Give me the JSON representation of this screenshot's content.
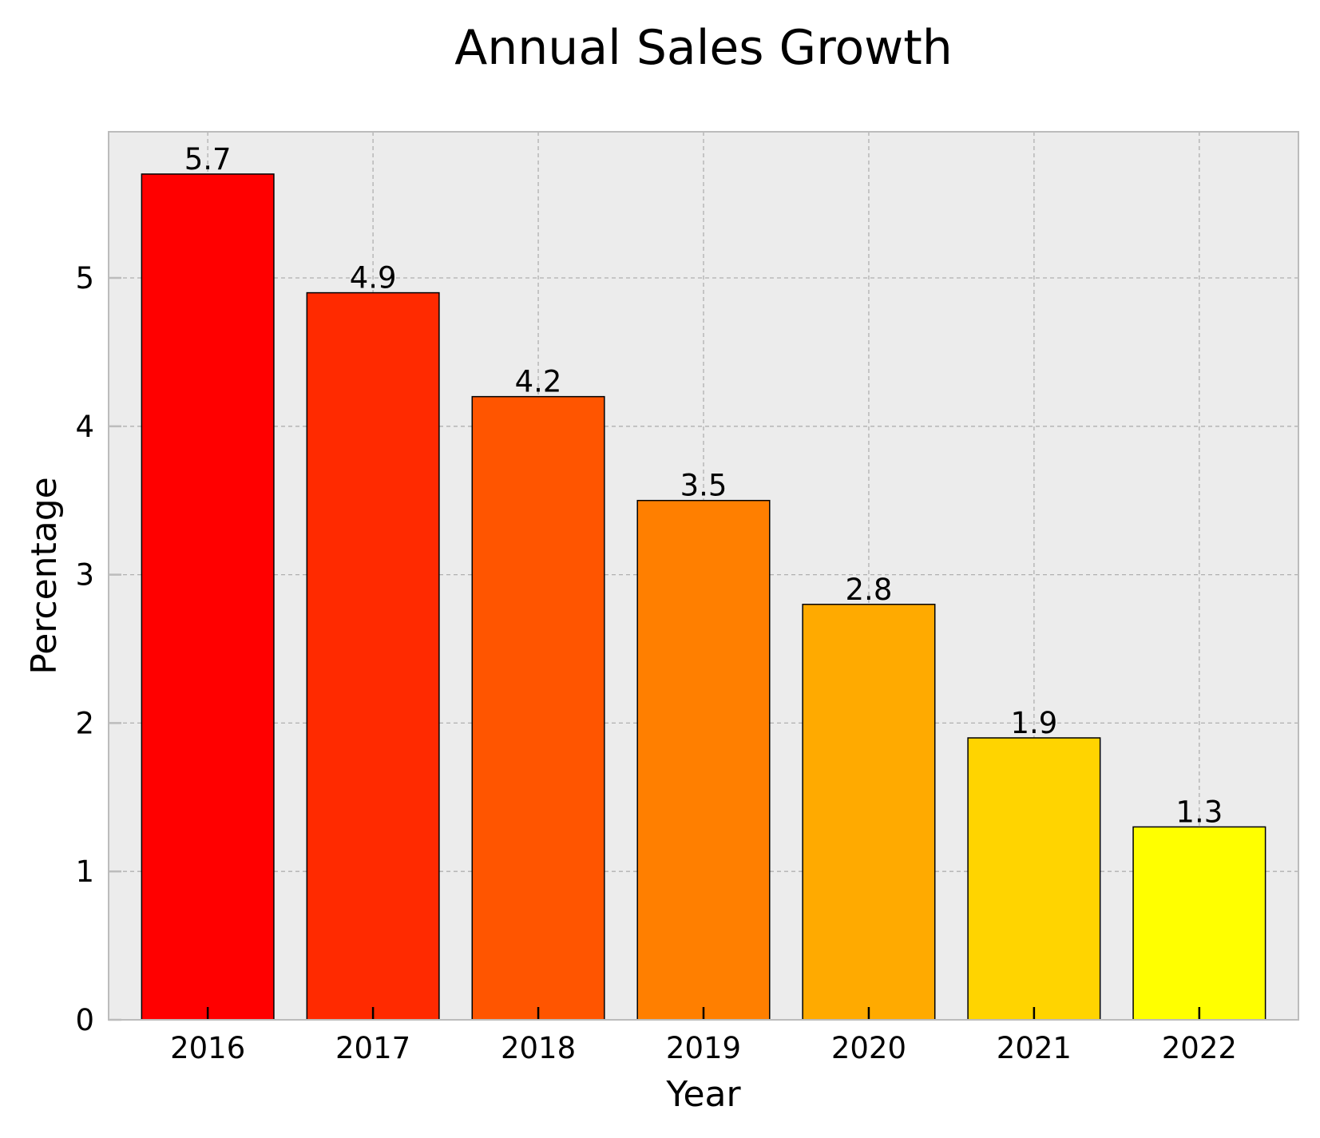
{
  "chart_data": {
    "type": "bar",
    "title": "Annual Sales Growth",
    "xlabel": "Year",
    "ylabel": "Percentage",
    "categories": [
      "2016",
      "2017",
      "2018",
      "2019",
      "2020",
      "2021",
      "2022"
    ],
    "values": [
      5.7,
      4.9,
      4.2,
      3.5,
      2.8,
      1.9,
      1.3
    ],
    "value_labels": [
      "5.7",
      "4.9",
      "4.2",
      "3.5",
      "2.8",
      "1.9",
      "1.3"
    ],
    "bar_colors": [
      "#ff0000",
      "#ff2a00",
      "#ff5500",
      "#ff7f00",
      "#ffaa00",
      "#ffd400",
      "#ffff00"
    ],
    "ylim": [
      0,
      5.985
    ],
    "yticks": [
      0,
      1,
      2,
      3,
      4,
      5
    ],
    "ytick_labels": [
      "0",
      "1",
      "2",
      "3",
      "4",
      "5"
    ],
    "grid": true,
    "colors": {
      "plot_background": "#ececec",
      "grid": "#b0b0b0",
      "frame": "#bcbcbc",
      "bar_edge": "#000000"
    }
  }
}
